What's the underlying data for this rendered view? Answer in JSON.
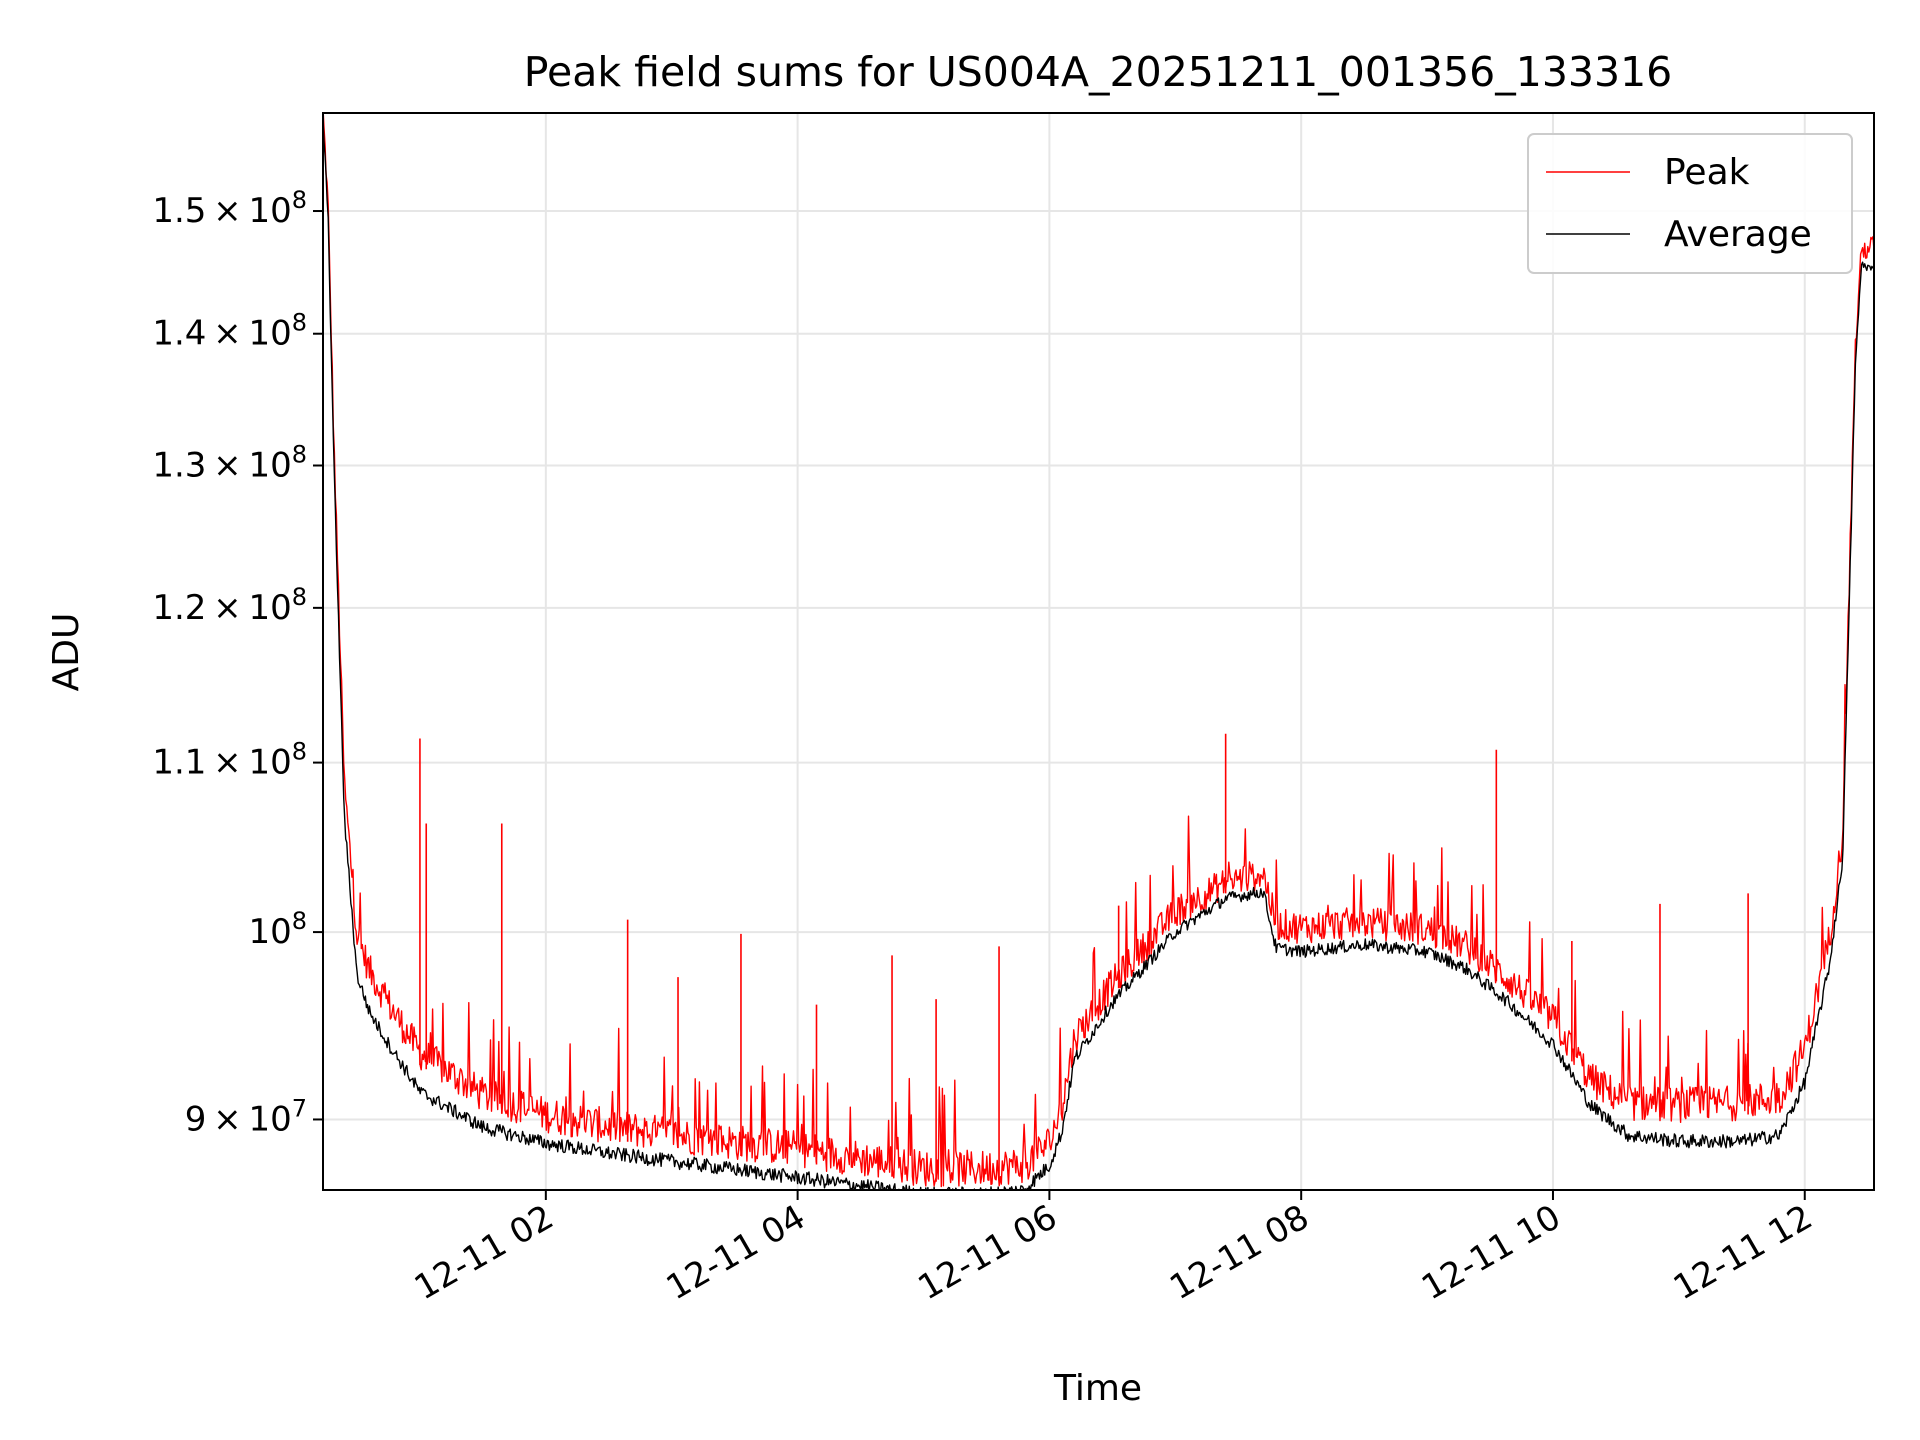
{
  "chart_data": {
    "type": "line",
    "title": "Peak field sums for US004A_20251211_001356_133316",
    "xlabel": "Time",
    "ylabel": "ADU",
    "yscale": "log",
    "ylim": [
      86500000,
      158500000
    ],
    "xlim_hours": [
      0.23,
      12.55
    ],
    "grid": true,
    "legend_position": "upper right",
    "x_ticks": [
      {
        "hour": 2,
        "label": "12-11 02"
      },
      {
        "hour": 4,
        "label": "12-11 04"
      },
      {
        "hour": 6,
        "label": "12-11 06"
      },
      {
        "hour": 8,
        "label": "12-11 08"
      },
      {
        "hour": 10,
        "label": "12-11 10"
      },
      {
        "hour": 12,
        "label": "12-11 12"
      }
    ],
    "y_ticks": [
      {
        "value": 90000000,
        "mant": "9",
        "exp": "7",
        "coef": true
      },
      {
        "value": 100000000,
        "mant": "10",
        "exp": "8",
        "coef": false
      },
      {
        "value": 110000000,
        "mant": "1.1",
        "exp": "8",
        "coef": true
      },
      {
        "value": 120000000,
        "mant": "1.2",
        "exp": "8",
        "coef": true
      },
      {
        "value": 130000000,
        "mant": "1.3",
        "exp": "8",
        "coef": true
      },
      {
        "value": 140000000,
        "mant": "1.4",
        "exp": "8",
        "coef": true
      },
      {
        "value": 150000000,
        "mant": "1.5",
        "exp": "8",
        "coef": true
      }
    ],
    "series": [
      {
        "name": "Peak",
        "color": "#ff0000",
        "noise_amplitude": 1300000,
        "x_hours": [
          0.23,
          0.27,
          0.32,
          0.4,
          0.5,
          0.6,
          0.75,
          1.0,
          1.5,
          2.0,
          2.5,
          3.0,
          3.5,
          4.0,
          4.5,
          5.0,
          5.5,
          5.8,
          6.0,
          6.1,
          6.2,
          6.5,
          7.0,
          7.4,
          7.7,
          7.8,
          8.0,
          8.5,
          9.0,
          9.3,
          9.6,
          10.0,
          10.3,
          10.6,
          11.0,
          11.5,
          11.8,
          12.0,
          12.2,
          12.3,
          12.35,
          12.4,
          12.45,
          12.55
        ],
        "values": [
          158000000,
          150000000,
          130000000,
          108000000,
          99200000,
          97200000,
          95400000,
          92800000,
          90600000,
          89600000,
          89000000,
          88600000,
          88200000,
          87900000,
          87400000,
          86900000,
          86900000,
          87100000,
          88200000,
          90000000,
          93600000,
          96500000,
          100500000,
          102200000,
          102700000,
          99800000,
          99600000,
          99900000,
          99500000,
          98600000,
          97000000,
          94600000,
          91400000,
          90200000,
          90100000,
          90200000,
          90500000,
          93000000,
          99200000,
          105000000,
          120000000,
          138000000,
          146000000,
          146500000
        ],
        "spikes": [
          {
            "x": 1.0,
            "value": 111500000
          },
          {
            "x": 1.05,
            "value": 106300000
          },
          {
            "x": 1.65,
            "value": 106300000
          },
          {
            "x": 2.65,
            "value": 100700000
          },
          {
            "x": 3.05,
            "value": 97500000
          },
          {
            "x": 3.55,
            "value": 99900000
          },
          {
            "x": 4.15,
            "value": 96000000
          },
          {
            "x": 4.75,
            "value": 98700000
          },
          {
            "x": 5.1,
            "value": 96300000
          },
          {
            "x": 5.6,
            "value": 99200000
          },
          {
            "x": 6.55,
            "value": 101500000
          },
          {
            "x": 7.4,
            "value": 111800000
          },
          {
            "x": 9.55,
            "value": 110800000
          },
          {
            "x": 10.15,
            "value": 99500000
          },
          {
            "x": 10.85,
            "value": 101600000
          },
          {
            "x": 11.55,
            "value": 102200000
          }
        ]
      },
      {
        "name": "Average",
        "color": "#000000",
        "noise_amplitude": 700000,
        "x_hours": [
          0.23,
          0.27,
          0.32,
          0.4,
          0.5,
          0.6,
          0.75,
          1.0,
          1.5,
          2.0,
          2.5,
          3.0,
          3.5,
          4.0,
          4.5,
          5.0,
          5.5,
          5.8,
          6.0,
          6.1,
          6.2,
          6.5,
          7.0,
          7.4,
          7.7,
          7.8,
          8.0,
          8.5,
          9.0,
          9.3,
          9.6,
          10.0,
          10.3,
          10.6,
          11.0,
          11.5,
          11.8,
          12.0,
          12.2,
          12.3,
          12.35,
          12.4,
          12.45,
          12.55
        ],
        "values": [
          157800000,
          149500000,
          129000000,
          106500000,
          97500000,
          95500000,
          93800000,
          91300000,
          89500000,
          88700000,
          88200000,
          87800000,
          87400000,
          87000000,
          86600000,
          86200000,
          86200000,
          86400000,
          87600000,
          89300000,
          93000000,
          96000000,
          99900000,
          101800000,
          102200000,
          99000000,
          98800000,
          99200000,
          98800000,
          97900000,
          96300000,
          93800000,
          90600000,
          89100000,
          88800000,
          88800000,
          89100000,
          91800000,
          98200000,
          104000000,
          119000000,
          137000000,
          145500000,
          145000000
        ]
      }
    ]
  }
}
